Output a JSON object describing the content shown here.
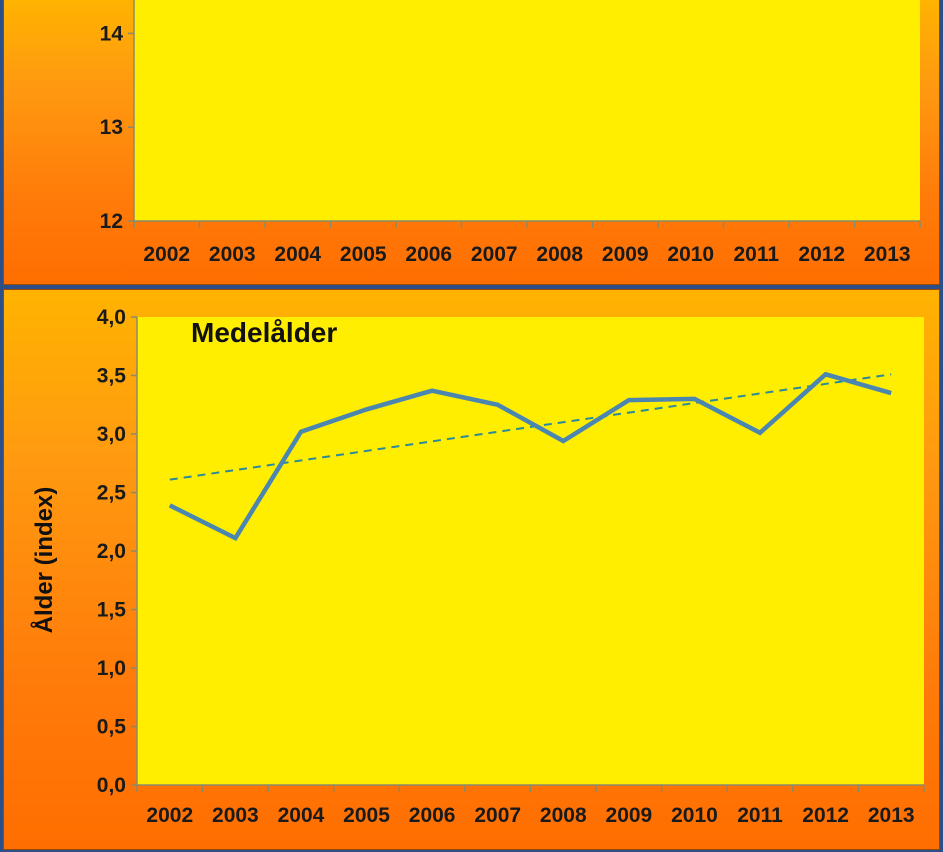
{
  "chart_data": [
    {
      "type": "line",
      "title": "",
      "xlabel": "",
      "ylabel": "",
      "categories": [
        "2002",
        "2003",
        "2004",
        "2005",
        "2006",
        "2007",
        "2008",
        "2009",
        "2010",
        "2011",
        "2012",
        "2013"
      ],
      "ylim": [
        12,
        14.9
      ],
      "y_ticks": [
        "12",
        "13",
        "14"
      ],
      "series": [],
      "grid": false
    },
    {
      "type": "line",
      "title": "Medelålder",
      "xlabel": "",
      "ylabel": "Ålder (index)",
      "categories": [
        "2002",
        "2003",
        "2004",
        "2005",
        "2006",
        "2007",
        "2008",
        "2009",
        "2010",
        "2011",
        "2012",
        "2013"
      ],
      "ylim": [
        0,
        4
      ],
      "y_ticks": [
        "0,0",
        "0,5",
        "1,0",
        "1,5",
        "2,0",
        "2,5",
        "3,0",
        "3,5",
        "4,0"
      ],
      "series": [
        {
          "values": [
            2.39,
            2.11,
            3.02,
            3.21,
            3.37,
            3.25,
            2.94,
            3.29,
            3.3,
            3.01,
            3.51,
            3.35
          ],
          "style": "solid"
        }
      ],
      "trendline": {
        "start": 2.61,
        "end": 3.51,
        "style": "dashed"
      },
      "grid": false
    }
  ],
  "colors": {
    "plot_background": "#ffee00",
    "series_line": "#4a86b0",
    "trend_line": "#2a8a9a",
    "panel_gradient_top": "#ffb300",
    "panel_gradient_bottom": "#ff6e00"
  }
}
